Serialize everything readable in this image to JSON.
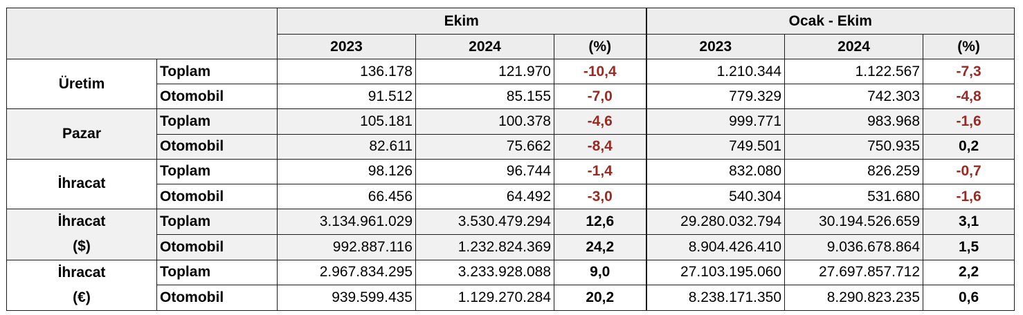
{
  "header": {
    "ekim": "Ekim",
    "ocak_ekim": "Ocak - Ekim",
    "y2023": "2023",
    "y2024": "2024",
    "pct": "(%)"
  },
  "groups": [
    {
      "name_line1": "Üretim",
      "name_line2": "",
      "rows": [
        {
          "label": "Toplam",
          "ekim_2023": "136.178",
          "ekim_2024": "121.970",
          "ekim_pct": "-10,4",
          "ytd_2023": "1.210.344",
          "ytd_2024": "1.122.567",
          "ytd_pct": "-7,3"
        },
        {
          "label": "Otomobil",
          "ekim_2023": "91.512",
          "ekim_2024": "85.155",
          "ekim_pct": "-7,0",
          "ytd_2023": "779.329",
          "ytd_2024": "742.303",
          "ytd_pct": "-4,8"
        }
      ]
    },
    {
      "name_line1": "Pazar",
      "name_line2": "",
      "rows": [
        {
          "label": "Toplam",
          "ekim_2023": "105.181",
          "ekim_2024": "100.378",
          "ekim_pct": "-4,6",
          "ytd_2023": "999.771",
          "ytd_2024": "983.968",
          "ytd_pct": "-1,6"
        },
        {
          "label": "Otomobil",
          "ekim_2023": "82.611",
          "ekim_2024": "75.662",
          "ekim_pct": "-8,4",
          "ytd_2023": "749.501",
          "ytd_2024": "750.935",
          "ytd_pct": "0,2"
        }
      ]
    },
    {
      "name_line1": "İhracat",
      "name_line2": "",
      "rows": [
        {
          "label": "Toplam",
          "ekim_2023": "98.126",
          "ekim_2024": "96.744",
          "ekim_pct": "-1,4",
          "ytd_2023": "832.080",
          "ytd_2024": "826.259",
          "ytd_pct": "-0,7"
        },
        {
          "label": "Otomobil",
          "ekim_2023": "66.456",
          "ekim_2024": "64.492",
          "ekim_pct": "-3,0",
          "ytd_2023": "540.304",
          "ytd_2024": "531.680",
          "ytd_pct": "-1,6"
        }
      ]
    },
    {
      "name_line1": "İhracat",
      "name_line2": "($)",
      "rows": [
        {
          "label": "Toplam",
          "ekim_2023": "3.134.961.029",
          "ekim_2024": "3.530.479.294",
          "ekim_pct": "12,6",
          "ytd_2023": "29.280.032.794",
          "ytd_2024": "30.194.526.659",
          "ytd_pct": "3,1"
        },
        {
          "label": "Otomobil",
          "ekim_2023": "992.887.116",
          "ekim_2024": "1.232.824.369",
          "ekim_pct": "24,2",
          "ytd_2023": "8.904.426.410",
          "ytd_2024": "9.036.678.864",
          "ytd_pct": "1,5"
        }
      ]
    },
    {
      "name_line1": "İhracat",
      "name_line2": "(€)",
      "rows": [
        {
          "label": "Toplam",
          "ekim_2023": "2.967.834.295",
          "ekim_2024": "3.233.928.088",
          "ekim_pct": "9,0",
          "ytd_2023": "27.103.195.060",
          "ytd_2024": "27.697.857.712",
          "ytd_pct": "2,2"
        },
        {
          "label": "Otomobil",
          "ekim_2023": "939.599.435",
          "ekim_2024": "1.129.270.284",
          "ekim_pct": "20,2",
          "ytd_2023": "8.238.171.350",
          "ytd_2024": "8.290.823.235",
          "ytd_pct": "0,6"
        }
      ]
    }
  ],
  "colors": {
    "negative": "#9b2a22",
    "positive": "#000000",
    "header_background": "#ededed",
    "shaded_group_background": "#f1f1f1"
  }
}
